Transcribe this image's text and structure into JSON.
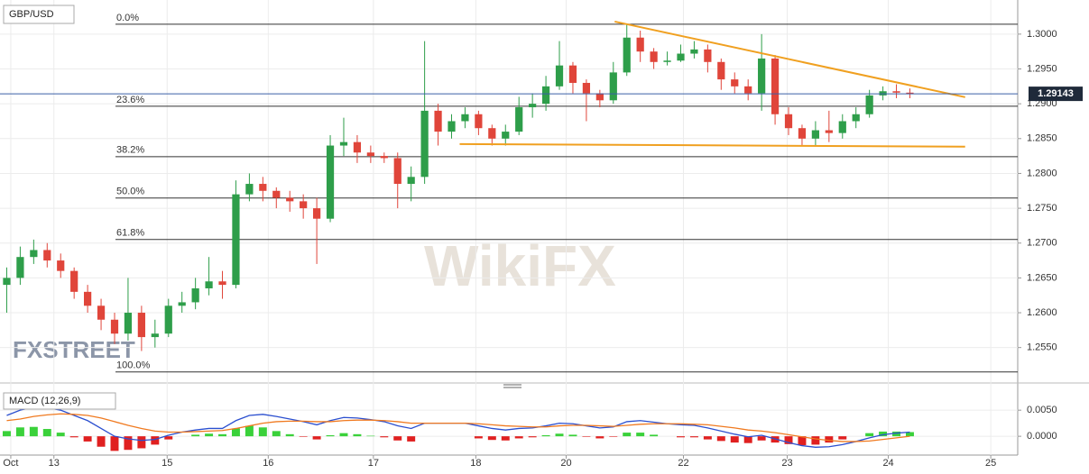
{
  "chart_data": [
    {
      "type": "candlestick",
      "title": "GBP/USD",
      "watermark": "WikiFX",
      "logo": "FXSTREET",
      "up_color": "#2e9e4a",
      "down_color": "#e0453a",
      "xlim": [
        -0.5,
        75
      ],
      "ylim": [
        1.2503,
        1.3049
      ],
      "grid": true,
      "xticks": [
        {
          "value": 0.3,
          "label": "Oct"
        },
        {
          "value": 3.5,
          "label": "13"
        },
        {
          "value": 11.9,
          "label": "15"
        },
        {
          "value": 19.4,
          "label": "16"
        },
        {
          "value": 27.2,
          "label": "17"
        },
        {
          "value": 34.8,
          "label": "18"
        },
        {
          "value": 41.5,
          "label": "20"
        },
        {
          "value": 50.2,
          "label": "22"
        },
        {
          "value": 57.9,
          "label": "23"
        },
        {
          "value": 65.4,
          "label": "24"
        },
        {
          "value": 73.0,
          "label": "25"
        }
      ],
      "yticks": [
        {
          "value": 1.255,
          "label": "1.2550"
        },
        {
          "value": 1.26,
          "label": "1.2600"
        },
        {
          "value": 1.265,
          "label": "1.2650"
        },
        {
          "value": 1.27,
          "label": "1.2700"
        },
        {
          "value": 1.275,
          "label": "1.2750"
        },
        {
          "value": 1.28,
          "label": "1.2800"
        },
        {
          "value": 1.285,
          "label": "1.2850"
        },
        {
          "value": 1.29,
          "label": "1.2900"
        },
        {
          "value": 1.295,
          "label": "1.2950"
        },
        {
          "value": 1.3,
          "label": "1.3000"
        }
      ],
      "open": [
        1.264,
        1.265,
        1.268,
        1.269,
        1.2675,
        1.266,
        1.263,
        1.261,
        1.259,
        1.257,
        1.26,
        1.2565,
        1.257,
        1.261,
        1.2615,
        1.2635,
        1.2645,
        1.264,
        1.277,
        1.2785,
        1.2775,
        1.2765,
        1.276,
        1.275,
        1.2735,
        1.284,
        1.2845,
        1.283,
        1.2825,
        1.2822,
        1.2785,
        1.2795,
        1.289,
        1.286,
        1.2875,
        1.2885,
        1.2865,
        1.285,
        1.286,
        1.2895,
        1.29,
        1.2925,
        1.2955,
        1.293,
        1.2915,
        1.2905,
        1.2945,
        1.2995,
        1.2975,
        1.296,
        1.2962,
        1.2972,
        1.2978,
        1.296,
        1.2935,
        1.2925,
        1.2915,
        1.2965,
        1.2885,
        1.2865,
        1.285,
        1.2862,
        1.2858,
        1.2875,
        1.2885,
        1.2912,
        1.2918,
        1.2916
      ],
      "high": [
        1.2665,
        1.2695,
        1.2705,
        1.27,
        1.2685,
        1.2665,
        1.264,
        1.262,
        1.26,
        1.265,
        1.261,
        1.259,
        1.262,
        1.263,
        1.265,
        1.268,
        1.266,
        1.279,
        1.28,
        1.2795,
        1.278,
        1.2775,
        1.277,
        1.2765,
        1.2855,
        1.288,
        1.2855,
        1.284,
        1.283,
        1.283,
        1.281,
        1.299,
        1.29,
        1.2885,
        1.2895,
        1.289,
        1.287,
        1.287,
        1.291,
        1.2915,
        1.294,
        1.299,
        1.296,
        1.2935,
        1.292,
        1.296,
        1.3015,
        1.3005,
        1.298,
        1.2975,
        1.2985,
        1.299,
        1.2985,
        1.2965,
        1.2945,
        1.2935,
        1.3,
        1.297,
        1.2895,
        1.287,
        1.2875,
        1.289,
        1.2885,
        1.2895,
        1.292,
        1.2925,
        1.2928,
        1.2922
      ],
      "low": [
        1.26,
        1.264,
        1.267,
        1.2665,
        1.265,
        1.262,
        1.26,
        1.2575,
        1.2555,
        1.256,
        1.2545,
        1.255,
        1.2565,
        1.26,
        1.2605,
        1.2625,
        1.262,
        1.2635,
        1.276,
        1.276,
        1.275,
        1.2745,
        1.2735,
        1.267,
        1.273,
        1.2825,
        1.2815,
        1.2815,
        1.2815,
        1.275,
        1.276,
        1.2785,
        1.284,
        1.285,
        1.2865,
        1.2855,
        1.284,
        1.284,
        1.2855,
        1.288,
        1.289,
        1.292,
        1.2915,
        1.2875,
        1.2895,
        1.29,
        1.294,
        1.296,
        1.295,
        1.2955,
        1.296,
        1.2965,
        1.2945,
        1.292,
        1.2915,
        1.2905,
        1.289,
        1.287,
        1.2855,
        1.284,
        1.284,
        1.2845,
        1.285,
        1.2865,
        1.288,
        1.2905,
        1.2908,
        1.2908
      ],
      "close": [
        1.265,
        1.268,
        1.269,
        1.2675,
        1.266,
        1.263,
        1.261,
        1.259,
        1.257,
        1.26,
        1.2565,
        1.257,
        1.261,
        1.2615,
        1.2635,
        1.2645,
        1.264,
        1.277,
        1.2785,
        1.2775,
        1.2765,
        1.276,
        1.275,
        1.2735,
        1.284,
        1.2845,
        1.283,
        1.2825,
        1.2822,
        1.2785,
        1.2795,
        1.289,
        1.286,
        1.2875,
        1.2885,
        1.2865,
        1.285,
        1.286,
        1.2895,
        1.29,
        1.2925,
        1.2955,
        1.293,
        1.2915,
        1.2905,
        1.2945,
        1.2995,
        1.2975,
        1.296,
        1.2962,
        1.2972,
        1.2978,
        1.296,
        1.2935,
        1.2925,
        1.2915,
        1.2965,
        1.2885,
        1.2865,
        1.285,
        1.2862,
        1.2858,
        1.2875,
        1.2885,
        1.2912,
        1.2918,
        1.2916,
        1.2914
      ],
      "levels": [
        {
          "label": "0.0%",
          "value": 1.30142
        },
        {
          "label": "23.6%",
          "value": 1.28965
        },
        {
          "label": "38.2%",
          "value": 1.28241
        },
        {
          "label": "50.0%",
          "value": 1.27646
        },
        {
          "label": "61.8%",
          "value": 1.27051
        },
        {
          "label": "100.0%",
          "value": 1.2515
        }
      ],
      "trendlines": [
        {
          "color": "#f0a020",
          "x": [
            45.1,
            71.1
          ],
          "y": [
            1.3018,
            1.29095
          ]
        },
        {
          "color": "#f0a020",
          "x": [
            33.6,
            71.1
          ],
          "y": [
            1.28422,
            1.28384
          ]
        }
      ],
      "last_price": {
        "value": 1.29143,
        "label": "1.29143",
        "color": "#3a5fa8"
      }
    },
    {
      "type": "macd",
      "title": "MACD (12,26,9)",
      "xlim": [
        -0.5,
        75
      ],
      "ylim": [
        -0.0036,
        0.009
      ],
      "yticks": [
        {
          "value": 0,
          "label": "0.0000"
        },
        {
          "value": 0.005,
          "label": "0.0050"
        }
      ],
      "histogram": {
        "up_color": "#3ad13a",
        "down_color": "#e02020",
        "values": [
          0.001,
          0.0017,
          0.0018,
          0.0014,
          0.0007,
          -0.0002,
          -0.001,
          -0.002,
          -0.0028,
          -0.0026,
          -0.0023,
          -0.0016,
          -0.0006,
          0.0,
          0.0003,
          0.0005,
          0.0004,
          0.0015,
          0.002,
          0.0017,
          0.001,
          0.0004,
          -0.0001,
          -0.0006,
          0.0002,
          0.0006,
          0.0004,
          0.0001,
          -0.0002,
          -0.0008,
          -0.001,
          0.0,
          0.0,
          0.0,
          0.0,
          -0.0004,
          -0.0007,
          -0.0008,
          -0.0004,
          -0.0002,
          0.0002,
          0.0005,
          0.0003,
          -0.0001,
          -0.0004,
          -0.0001,
          0.0007,
          0.0007,
          0.0003,
          0.0,
          -0.0002,
          -0.0002,
          -0.0006,
          -0.0009,
          -0.0012,
          -0.0013,
          -0.0008,
          -0.0012,
          -0.0015,
          -0.0017,
          -0.0016,
          -0.0012,
          -0.0006,
          0.0,
          0.0006,
          0.0009,
          0.0009,
          0.0008
        ]
      },
      "series": [
        {
          "color": "#2b4fcf",
          "values": [
            0.004,
            0.005,
            0.0056,
            0.0055,
            0.005,
            0.004,
            0.003,
            0.0015,
            0.0,
            -0.0005,
            -0.0008,
            -0.0006,
            0.0002,
            0.0008,
            0.0012,
            0.0015,
            0.0015,
            0.003,
            0.004,
            0.0042,
            0.0038,
            0.0033,
            0.0028,
            0.0022,
            0.003,
            0.0036,
            0.0035,
            0.0032,
            0.0028,
            0.002,
            0.0015,
            0.0025,
            0.0025,
            0.0025,
            0.0025,
            0.002,
            0.0015,
            0.0012,
            0.0015,
            0.0016,
            0.002,
            0.0025,
            0.0024,
            0.002,
            0.0016,
            0.0018,
            0.0028,
            0.003,
            0.0027,
            0.0024,
            0.0022,
            0.0021,
            0.0016,
            0.001,
            0.0004,
            -0.0001,
            0.0002,
            -0.0005,
            -0.0012,
            -0.0018,
            -0.0021,
            -0.002,
            -0.0016,
            -0.001,
            -0.0003,
            0.0003,
            0.0006,
            0.0008
          ]
        },
        {
          "color": "#f07a20",
          "values": [
            0.003,
            0.0033,
            0.0038,
            0.0041,
            0.0043,
            0.0042,
            0.004,
            0.0035,
            0.0028,
            0.0021,
            0.0015,
            0.001,
            0.0008,
            0.0008,
            0.0009,
            0.001,
            0.0011,
            0.0015,
            0.002,
            0.0025,
            0.0028,
            0.0029,
            0.0029,
            0.0028,
            0.0028,
            0.003,
            0.0031,
            0.0031,
            0.003,
            0.0028,
            0.0025,
            0.0025,
            0.0025,
            0.0025,
            0.0025,
            0.0024,
            0.0022,
            0.002,
            0.0019,
            0.0018,
            0.0018,
            0.002,
            0.0021,
            0.0021,
            0.002,
            0.0019,
            0.0021,
            0.0023,
            0.0024,
            0.0024,
            0.0024,
            0.0023,
            0.0022,
            0.0019,
            0.0016,
            0.0012,
            0.001,
            0.0007,
            0.0003,
            -0.0001,
            -0.0005,
            -0.0008,
            -0.001,
            -0.001,
            -0.0009,
            -0.0006,
            -0.0003,
            0.0
          ]
        }
      ]
    }
  ]
}
